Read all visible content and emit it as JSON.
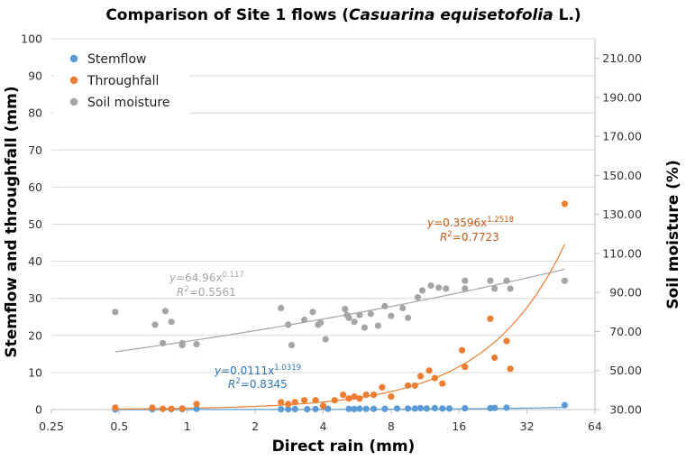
{
  "chart_data": {
    "type": "scatter",
    "title": {
      "prefix": "Comparison of Site 1 flows (",
      "species": "Casuarina equisetofolia",
      "suffix": " L.)"
    },
    "xlabel": "Direct rain (mm)",
    "ylabel_left": "Stemflow and throughfall (mm)",
    "ylabel_right": "Soil moisture (%)",
    "x_scale": "log2",
    "xlim": [
      0.25,
      64
    ],
    "x_ticks": [
      0.25,
      0.5,
      1,
      2,
      4,
      8,
      16,
      32,
      64
    ],
    "x_tick_labels": [
      "0.25",
      "0.5",
      "1",
      "2",
      "4",
      "8",
      "16",
      "32",
      "64"
    ],
    "ylim_left": [
      0,
      100
    ],
    "y_left_ticks": [
      0,
      10,
      20,
      30,
      40,
      50,
      60,
      70,
      80,
      90,
      100
    ],
    "y_left_tick_labels": [
      "0",
      "10",
      "20",
      "30",
      "40",
      "50",
      "60",
      "70",
      "80",
      "90",
      "100"
    ],
    "ylim_right": [
      30,
      220
    ],
    "y_right_ticks": [
      30,
      50,
      70,
      90,
      110,
      130,
      150,
      170,
      190,
      210
    ],
    "y_right_tick_labels": [
      "30.00",
      "50.00",
      "70.00",
      "90.00",
      "110.00",
      "130.00",
      "150.00",
      "170.00",
      "190.00",
      "210.00"
    ],
    "legend_position": "top-left",
    "series": [
      {
        "name": "Stemflow",
        "color": "#5b9bd5",
        "axis": "left",
        "points": [
          [
            0.48,
            0.05
          ],
          [
            0.7,
            0.1
          ],
          [
            0.85,
            0.1
          ],
          [
            0.95,
            0.15
          ],
          [
            1.1,
            0.2
          ],
          [
            2.6,
            0.1
          ],
          [
            2.8,
            0.1
          ],
          [
            3.0,
            0.15
          ],
          [
            3.4,
            0.1
          ],
          [
            3.7,
            0.15
          ],
          [
            4.2,
            0.2
          ],
          [
            5.2,
            0.2
          ],
          [
            5.5,
            0.15
          ],
          [
            5.8,
            0.25
          ],
          [
            6.2,
            0.2
          ],
          [
            6.7,
            0.2
          ],
          [
            7.5,
            0.2
          ],
          [
            8.5,
            0.3
          ],
          [
            9.5,
            0.3
          ],
          [
            10.2,
            0.3
          ],
          [
            10.8,
            0.4
          ],
          [
            11.5,
            0.3
          ],
          [
            12.5,
            0.4
          ],
          [
            13.5,
            0.3
          ],
          [
            14.5,
            0.3
          ],
          [
            17.0,
            0.35
          ],
          [
            22.0,
            0.4
          ],
          [
            23.0,
            0.45
          ],
          [
            26.0,
            0.5
          ],
          [
            47.0,
            1.2
          ]
        ]
      },
      {
        "name": "Throughfall",
        "color": "#ed7d31",
        "axis": "left",
        "points": [
          [
            0.48,
            0.5
          ],
          [
            0.7,
            0.5
          ],
          [
            0.78,
            0.2
          ],
          [
            0.85,
            0.2
          ],
          [
            0.95,
            0.3
          ],
          [
            1.1,
            1.5
          ],
          [
            2.6,
            2.0
          ],
          [
            2.8,
            1.5
          ],
          [
            3.0,
            2.0
          ],
          [
            3.3,
            2.5
          ],
          [
            3.7,
            2.5
          ],
          [
            4.0,
            1.0
          ],
          [
            4.5,
            2.5
          ],
          [
            4.9,
            4.0
          ],
          [
            5.2,
            3.0
          ],
          [
            5.5,
            3.5
          ],
          [
            5.8,
            3.0
          ],
          [
            6.2,
            4.0
          ],
          [
            6.7,
            4.0
          ],
          [
            7.3,
            6.0
          ],
          [
            8.0,
            3.5
          ],
          [
            9.5,
            6.5
          ],
          [
            10.2,
            6.5
          ],
          [
            10.8,
            9.0
          ],
          [
            11.8,
            10.5
          ],
          [
            12.5,
            8.5
          ],
          [
            13.5,
            7.0
          ],
          [
            16.5,
            16.0
          ],
          [
            17.0,
            11.5
          ],
          [
            22.0,
            24.5
          ],
          [
            23.0,
            14.0
          ],
          [
            26.0,
            18.5
          ],
          [
            27.0,
            11.0
          ],
          [
            47.0,
            55.5
          ]
        ]
      },
      {
        "name": "Soil moisture",
        "color": "#a5a5a5",
        "axis": "right",
        "points": [
          [
            0.48,
            80.0
          ],
          [
            0.72,
            73.5
          ],
          [
            0.78,
            64.0
          ],
          [
            0.8,
            80.5
          ],
          [
            0.85,
            75.0
          ],
          [
            0.95,
            63.0
          ],
          [
            0.95,
            64.0
          ],
          [
            1.1,
            63.5
          ],
          [
            2.6,
            82.0
          ],
          [
            2.8,
            73.5
          ],
          [
            2.9,
            63.0
          ],
          [
            3.3,
            76.0
          ],
          [
            3.6,
            80.0
          ],
          [
            3.8,
            73.5
          ],
          [
            3.9,
            74.5
          ],
          [
            4.1,
            66.0
          ],
          [
            5.0,
            81.5
          ],
          [
            5.1,
            78.5
          ],
          [
            5.2,
            77.0
          ],
          [
            5.5,
            75.0
          ],
          [
            5.8,
            78.5
          ],
          [
            6.1,
            72.0
          ],
          [
            6.5,
            79.0
          ],
          [
            7.0,
            73.0
          ],
          [
            7.5,
            83.0
          ],
          [
            8.0,
            78.0
          ],
          [
            9.0,
            82.0
          ],
          [
            9.5,
            77.0
          ],
          [
            10.5,
            87.5
          ],
          [
            11.0,
            91.0
          ],
          [
            12.0,
            93.5
          ],
          [
            13.0,
            92.5
          ],
          [
            14.0,
            92.0
          ],
          [
            17.0,
            96.0
          ],
          [
            17.0,
            92.0
          ],
          [
            22.0,
            96.0
          ],
          [
            23.0,
            92.0
          ],
          [
            26.0,
            96.0
          ],
          [
            27.0,
            92.0
          ],
          [
            47.0,
            96.0
          ]
        ]
      }
    ],
    "trendlines": [
      {
        "series": "Stemflow",
        "type": "power",
        "a": 0.0111,
        "b": 1.0319,
        "x_range": [
          0.48,
          47
        ],
        "equation_prefix": "y",
        "equation_main": "=0.0111x",
        "equation_exp": "1.0319",
        "r2_prefix": "R",
        "r2_exp": "2",
        "r2_value": "=0.8345",
        "color": "#2e75b6"
      },
      {
        "series": "Throughfall",
        "type": "power",
        "a": 0.3596,
        "b": 1.2518,
        "x_range": [
          0.48,
          47
        ],
        "equation_prefix": "y",
        "equation_main": "=0.3596x",
        "equation_exp": "1.2518",
        "r2_prefix": "R",
        "r2_exp": "2",
        "r2_value": "=0.7723",
        "color": "#c55a11"
      },
      {
        "series": "Soil moisture",
        "type": "power",
        "a": 64.96,
        "b": 0.117,
        "x_range": [
          0.48,
          47
        ],
        "equation_prefix": "y",
        "equation_main": "=64.96x",
        "equation_exp": "0.117",
        "r2_prefix": "R",
        "r2_exp": "2",
        "r2_value": "=0.5561",
        "color": "#a5a5a5"
      }
    ]
  }
}
